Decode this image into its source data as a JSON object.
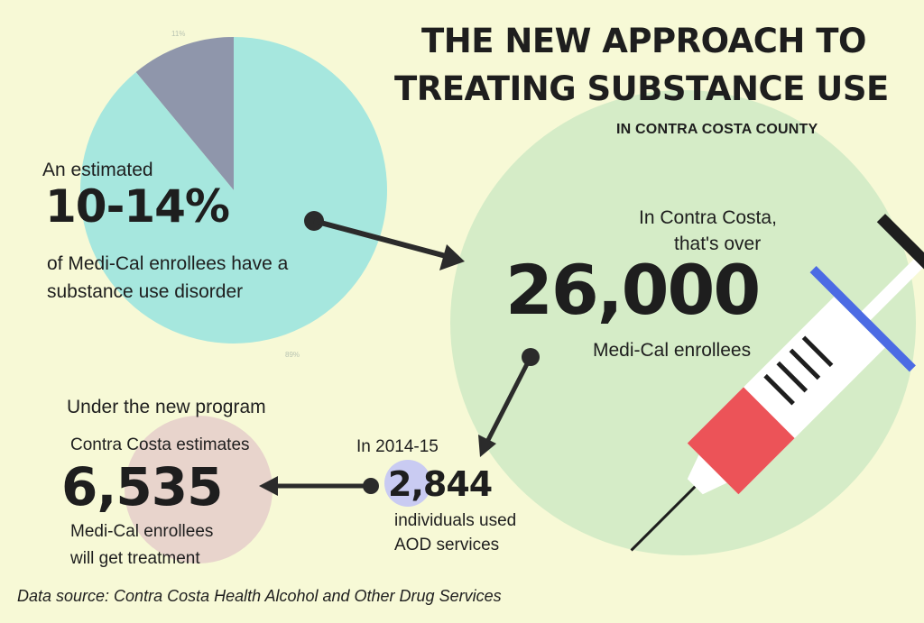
{
  "title_line1": "THE NEW APPROACH TO",
  "title_line2": "TREATING SUBSTANCE USE",
  "subtitle": "IN CONTRA COSTA COUNTY",
  "pie": {
    "slices": [
      {
        "label": "11%",
        "value": 11,
        "color": "#8f96ab"
      },
      {
        "label": "89%",
        "value": 89,
        "color": "#a6e7de"
      }
    ]
  },
  "estimate": {
    "lead": "An estimated",
    "value": "10-14%",
    "desc_line1": "of Medi-Cal enrollees have a",
    "desc_line2": "substance use disorder"
  },
  "county": {
    "lead_line1": "In Contra Costa,",
    "lead_line2": "that's over",
    "value": "26,000",
    "desc": "Medi-Cal enrollees"
  },
  "past": {
    "lead": "In 2014-15",
    "value": "2,844",
    "desc_line1": "individuals used",
    "desc_line2": "AOD services"
  },
  "program": {
    "heading": "Under the new program",
    "lead": "Contra Costa estimates",
    "value": "6,535",
    "desc_line1": "Medi-Cal enrollees",
    "desc_line2": "will get treatment"
  },
  "source": "Data source: Contra Costa Health Alcohol and Other Drug Services",
  "colors": {
    "background": "#f7f9d6",
    "big_circle": "#d5ecc7",
    "program_circle": "#e8d4cc",
    "past_circle": "#c9cbf2",
    "arrow": "#2b2b2b",
    "syringe_barrel": "#ffffff",
    "syringe_fluid": "#ec5358",
    "syringe_flange": "#4c6be4",
    "syringe_plunger": "#1e1e1e"
  },
  "icons": [
    "syringe-icon",
    "arrow-icon"
  ]
}
